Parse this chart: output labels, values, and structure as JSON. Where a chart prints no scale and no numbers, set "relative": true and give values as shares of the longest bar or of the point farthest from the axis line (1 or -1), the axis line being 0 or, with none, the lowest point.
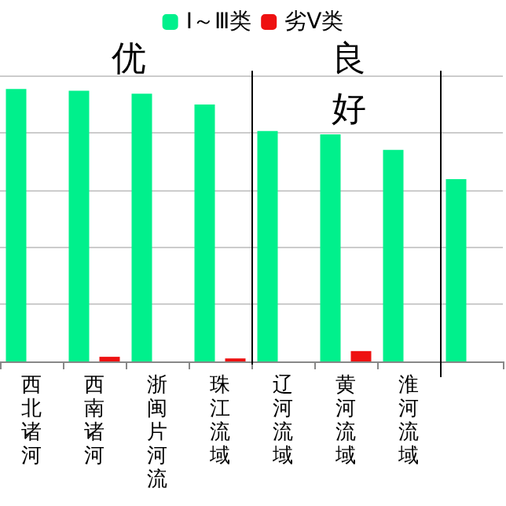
{
  "chart_data": {
    "type": "bar",
    "relative": true,
    "categories": [
      "西北诸河",
      "西南诸河",
      "浙闽片河流",
      "珠江流域",
      "辽河流域",
      "黄河流域",
      "淮河流域",
      null
    ],
    "series": [
      {
        "name": "I～Ⅲ类",
        "color": "#00f08c",
        "values": [
          1,
          0.994,
          0.983,
          0.943,
          0.846,
          0.834,
          0.777,
          0.669
        ]
      },
      {
        "name": "劣V类",
        "color": "#ee1111",
        "values": [
          0,
          0.017,
          0,
          0.011,
          0,
          0.038,
          0,
          0
        ]
      }
    ],
    "annotations": [
      "优",
      "良好"
    ],
    "grid": "y",
    "legend": "top"
  }
}
